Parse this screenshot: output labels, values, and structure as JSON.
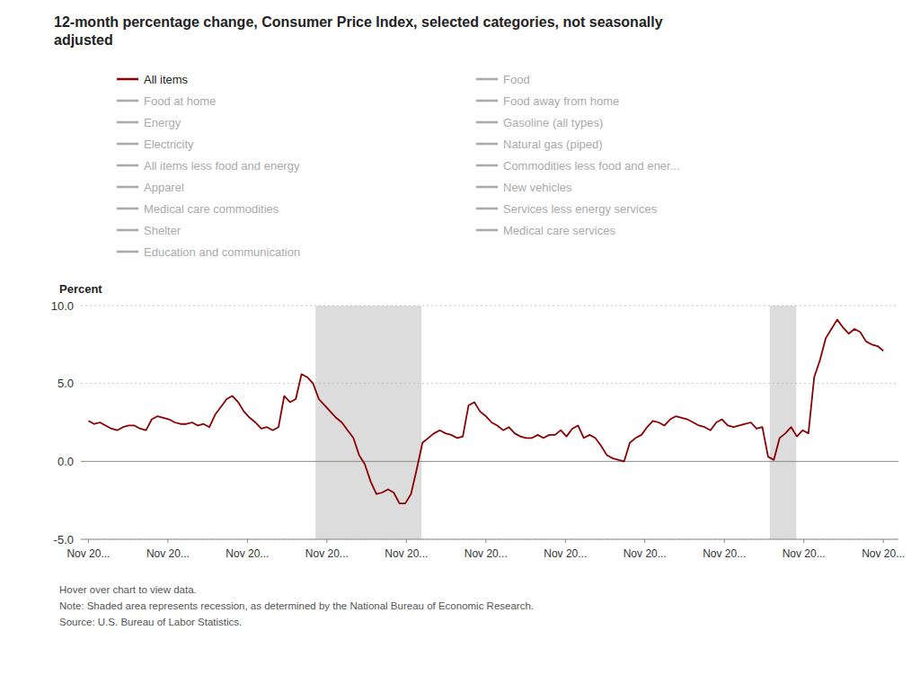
{
  "chart_data": {
    "type": "line",
    "title": "12-month percentage change, Consumer Price Index, selected categories, not seasonally\nadjusted",
    "ylabel": "Percent",
    "ylim": [
      -5.0,
      10.0
    ],
    "yticks": [
      {
        "value": -5.0,
        "label": "-5.0"
      },
      {
        "value": 0.0,
        "label": "0.0"
      },
      {
        "value": 5.0,
        "label": "5.0"
      },
      {
        "value": 10.0,
        "label": "10.0"
      }
    ],
    "xlim": [
      -0.1,
      10.7
    ],
    "xticks": [
      {
        "value": 0,
        "label": "Nov 20..."
      },
      {
        "value": 1.05,
        "label": "Nov 20..."
      },
      {
        "value": 2.1,
        "label": "Nov 20..."
      },
      {
        "value": 3.15,
        "label": "Nov 20..."
      },
      {
        "value": 4.2,
        "label": "Nov 20..."
      },
      {
        "value": 5.25,
        "label": "Nov 20..."
      },
      {
        "value": 6.3,
        "label": "Nov 20..."
      },
      {
        "value": 7.35,
        "label": "Nov 20..."
      },
      {
        "value": 8.4,
        "label": "Nov 20..."
      },
      {
        "value": 9.45,
        "label": "Nov 20..."
      },
      {
        "value": 10.5,
        "label": "Nov 20..."
      }
    ],
    "grid": true,
    "legend": "top",
    "shaded_ranges": [
      {
        "start": 3.0,
        "end": 4.4,
        "color": "#d0d0d0"
      },
      {
        "start": 9.0,
        "end": 9.35,
        "color": "#d0d0d0"
      }
    ],
    "series": [
      {
        "name": "All items",
        "color": "#8B0000",
        "values": [
          2.6,
          2.4,
          2.5,
          2.3,
          2.1,
          2.0,
          2.2,
          2.3,
          2.3,
          2.1,
          2.0,
          2.7,
          2.9,
          2.8,
          2.7,
          2.5,
          2.4,
          2.4,
          2.5,
          2.3,
          2.4,
          2.2,
          3.0,
          3.5,
          4.0,
          4.2,
          3.8,
          3.2,
          2.8,
          2.5,
          2.1,
          2.2,
          2.0,
          2.2,
          4.2,
          3.8,
          4.0,
          5.6,
          5.4,
          5.0,
          4.0,
          3.6,
          3.2,
          2.8,
          2.5,
          2.0,
          1.5,
          0.4,
          -0.2,
          -1.3,
          -2.1,
          -2.0,
          -1.8,
          -2.0,
          -2.7,
          -2.7,
          -2.1,
          -0.5,
          1.2,
          1.5,
          1.8,
          2.0,
          1.8,
          1.7,
          1.5,
          1.6,
          3.6,
          3.8,
          3.2,
          2.9,
          2.5,
          2.3,
          2.0,
          2.2,
          1.8,
          1.6,
          1.5,
          1.5,
          1.7,
          1.5,
          1.7,
          1.7,
          2.0,
          1.6,
          2.1,
          2.3,
          1.5,
          1.7,
          1.5,
          1.0,
          0.4,
          0.2,
          0.1,
          0.0,
          1.2,
          1.5,
          1.7,
          2.2,
          2.6,
          2.5,
          2.3,
          2.7,
          2.9,
          2.8,
          2.7,
          2.5,
          2.3,
          2.2,
          2.0,
          2.5,
          2.7,
          2.3,
          2.2,
          2.3,
          2.4,
          2.5,
          2.1,
          2.2,
          0.3,
          0.1,
          1.5,
          1.8,
          2.2,
          1.6,
          2.0,
          1.8,
          5.4,
          6.5,
          7.9,
          8.5,
          9.1,
          8.6,
          8.2,
          8.5,
          8.3,
          7.7,
          7.5,
          7.4,
          7.1
        ]
      }
    ],
    "inactive_series": [
      {
        "name": "Food at home",
        "color": "#aaaaaa"
      },
      {
        "name": "Energy",
        "color": "#aaaaaa"
      },
      {
        "name": "Electricity",
        "color": "#aaaaaa"
      },
      {
        "name": "All items less food and energy",
        "color": "#aaaaaa"
      },
      {
        "name": "Apparel",
        "color": "#aaaaaa"
      },
      {
        "name": "Medical care commodities",
        "color": "#aaaaaa"
      },
      {
        "name": "Shelter",
        "color": "#aaaaaa"
      },
      {
        "name": "Education and communication",
        "color": "#aaaaaa"
      },
      {
        "name": "Food",
        "color": "#aaaaaa"
      },
      {
        "name": "Food away from home",
        "color": "#aaaaaa"
      },
      {
        "name": "Gasoline (all types)",
        "color": "#aaaaaa"
      },
      {
        "name": "Natural gas (piped)",
        "color": "#aaaaaa"
      },
      {
        "name": "Commodities less food and ener...",
        "color": "#aaaaaa"
      },
      {
        "name": "New vehicles",
        "color": "#aaaaaa"
      },
      {
        "name": "Services less energy services",
        "color": "#aaaaaa"
      },
      {
        "name": "Medical care services",
        "color": "#aaaaaa"
      }
    ],
    "notes": [
      "Hover over chart to view data.",
      "Note: Shaded area represents recession, as determined by the National Bureau of Economic Research.",
      "Source: U.S. Bureau of Labor Statistics."
    ]
  }
}
